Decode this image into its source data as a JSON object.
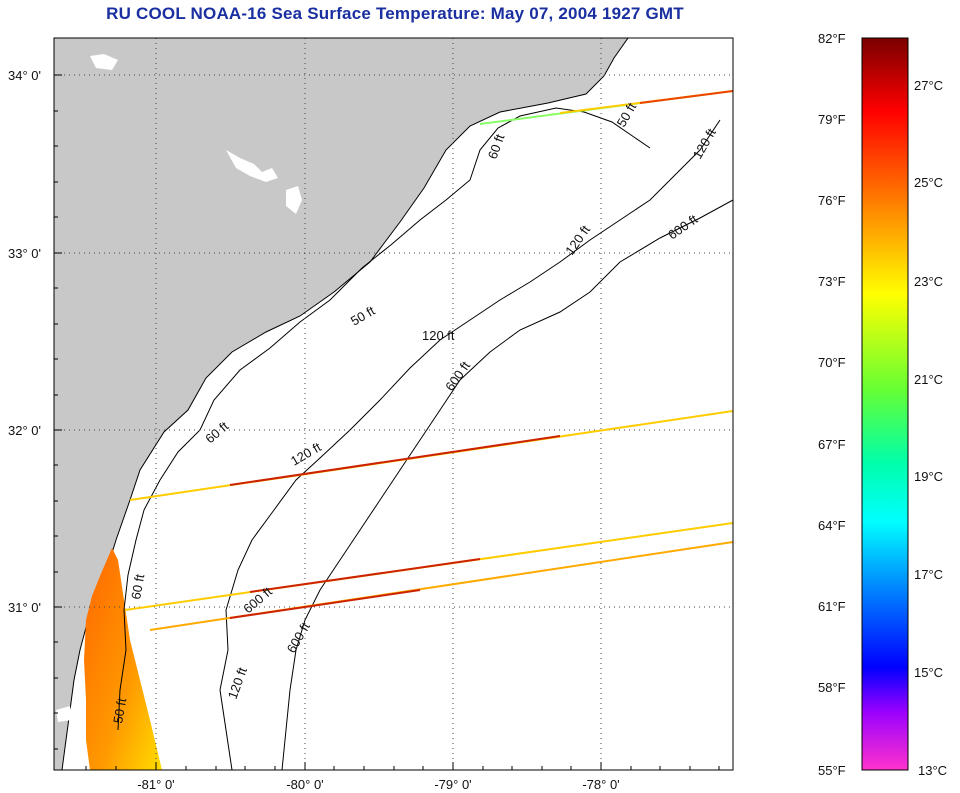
{
  "title": "RU COOL  NOAA-16  Sea Surface Temperature:  May 07, 2004 1927 GMT",
  "map": {
    "lat_labels": [
      "34° 0'",
      "33° 0'",
      "32° 0'",
      "31° 0'"
    ],
    "lon_labels": [
      "-81° 0'",
      "-80° 0'",
      "-79° 0'",
      "-78° 0'"
    ],
    "isobath_labels": [
      "50 ft",
      "60 ft",
      "120 ft",
      "600 ft",
      "120 ft",
      "600 ft",
      "50 ft",
      "120 ft",
      "60 ft",
      "120 ft",
      "600 ft",
      "600 ft",
      "60 ft",
      "120 ft",
      "50 ft"
    ],
    "colors": {
      "land": "#c8c8c8",
      "ocean": "#ffffff",
      "grid": "#555555"
    }
  },
  "colorbar": {
    "f_labels": [
      "82°F",
      "79°F",
      "76°F",
      "73°F",
      "70°F",
      "67°F",
      "64°F",
      "61°F",
      "58°F",
      "55°F"
    ],
    "c_labels": [
      "27°C",
      "25°C",
      "23°C",
      "21°C",
      "19°C",
      "17°C",
      "15°C",
      "13°C"
    ],
    "stops": [
      "#8b0000",
      "#ff0000",
      "#ff7f00",
      "#ffff00",
      "#7fff00",
      "#00ff7f",
      "#00ffff",
      "#007fff",
      "#0000ff",
      "#8b00ff",
      "#ff00ff"
    ]
  }
}
